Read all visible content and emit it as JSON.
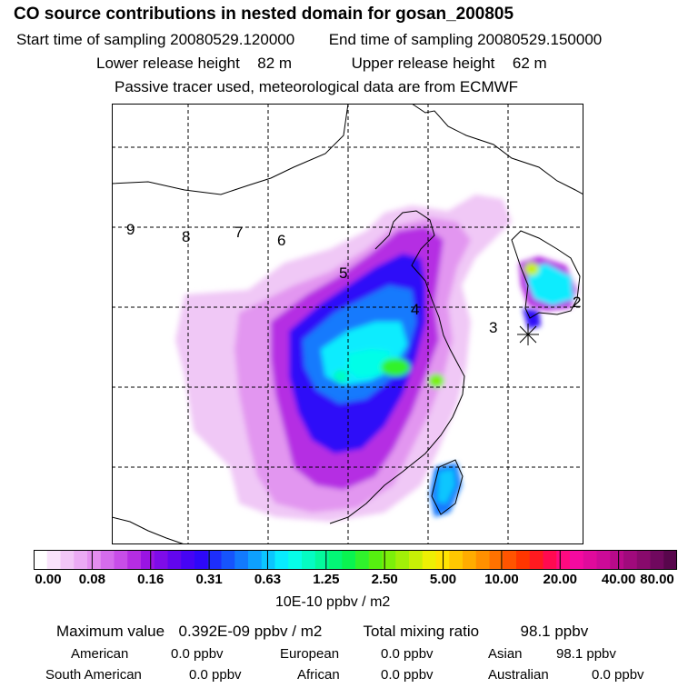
{
  "header": {
    "title": "CO  source contributions in nested domain for gosan_200805",
    "start_label": "Start time of sampling 20080529.120000",
    "end_label": "End time of sampling 20080529.150000",
    "lower_label": "Lower release height",
    "lower_value": "82 m",
    "upper_label": "Upper release height",
    "upper_value": "62 m",
    "tracer_note": "Passive tracer used, meteorological data are from ECMWF"
  },
  "map": {
    "grid_labels": [
      "9",
      "8",
      "7",
      "6",
      "5",
      "4",
      "3",
      "2"
    ],
    "receptor_icon": "asterisk-icon",
    "coastline_color": "#000000"
  },
  "colorbar": {
    "ticks": [
      "0.00",
      "0.08",
      "0.16",
      "0.31",
      "0.63",
      "1.25",
      "2.50",
      "5.00",
      "10.00",
      "20.00",
      "40.00",
      "80.00"
    ],
    "unit": "10E-10 ppbv / m2",
    "colors": [
      "#ffffff",
      "#f9e3fb",
      "#f2c6f7",
      "#ebaaf4",
      "#e48ef0",
      "#d56cec",
      "#c84de8",
      "#b52de3",
      "#9a14e3",
      "#7e0ce8",
      "#6206ee",
      "#4604f4",
      "#2e08f8",
      "#1d2efb",
      "#1654fc",
      "#127afd",
      "#0ea0fe",
      "#0bc6fe",
      "#08ecfe",
      "#06fee8",
      "#05fcc2",
      "#04f99c",
      "#03f776",
      "#0af450",
      "#30f22c",
      "#56f010",
      "#7cf00a",
      "#a2f008",
      "#c8f006",
      "#eef004",
      "#ffe402",
      "#ffc801",
      "#ffac00",
      "#ff9000",
      "#ff7200",
      "#ff5400",
      "#ff3600",
      "#ff1a20",
      "#ff0a50",
      "#ff0a80",
      "#f40aa0",
      "#e00a9c",
      "#cc0a98",
      "#b80a8a",
      "#a00a7c",
      "#880a6c",
      "#70085e",
      "#58064c"
    ]
  },
  "stats": {
    "max_label": "Maximum value",
    "max_value": "0.392E-09 ppbv / m2",
    "total_label": "Total mixing ratio",
    "total_value": "98.1 ppbv",
    "regions": [
      {
        "name": "American",
        "value": "0.0 ppbv"
      },
      {
        "name": "European",
        "value": "0.0 ppbv"
      },
      {
        "name": "Asian",
        "value": "98.1 ppbv"
      },
      {
        "name": "South American",
        "value": "0.0 ppbv"
      },
      {
        "name": "African",
        "value": "0.0 ppbv"
      },
      {
        "name": "Australian",
        "value": "0.0 ppbv"
      }
    ]
  }
}
